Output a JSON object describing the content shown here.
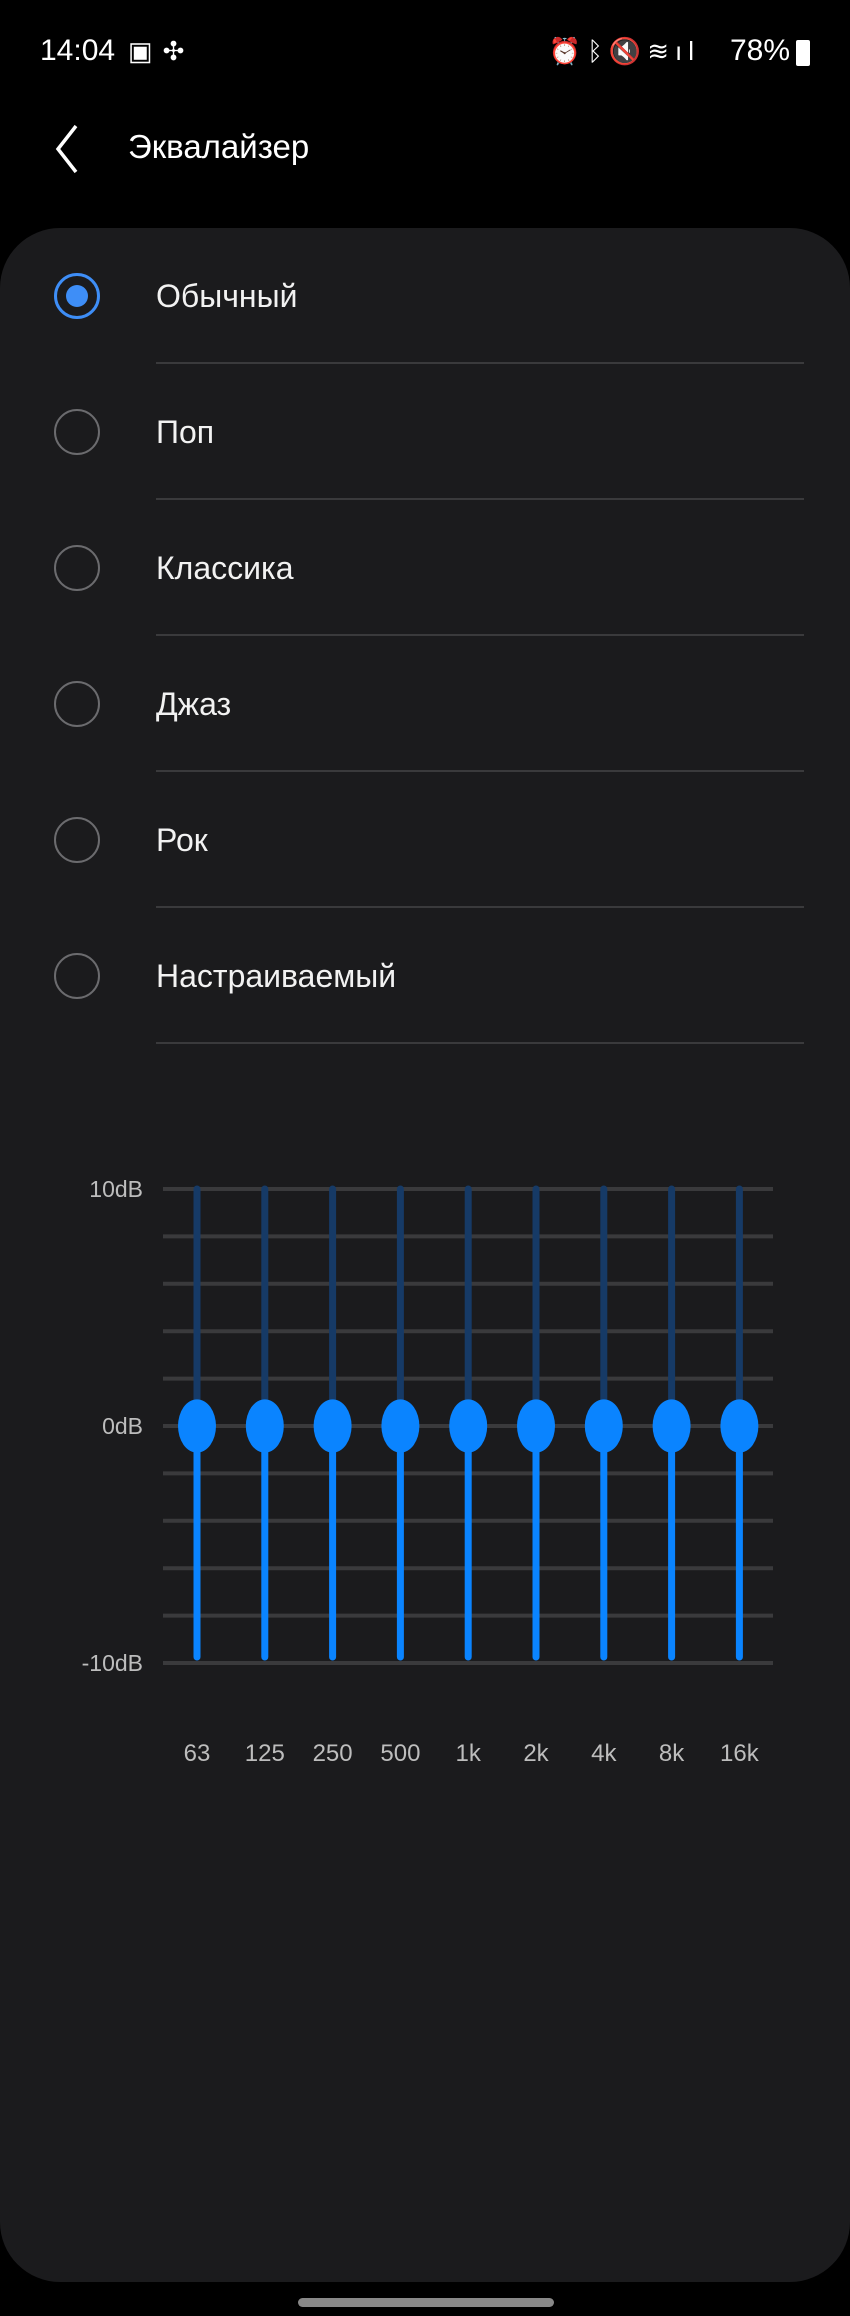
{
  "status": {
    "time": "14:04",
    "left_icons": [
      "image-icon",
      "fan-icon"
    ],
    "right_icons": [
      "alarm-icon",
      "bluetooth-icon",
      "mute-icon",
      "wifi-icon",
      "signal-icon"
    ],
    "battery": "78%"
  },
  "header": {
    "title": "Эквалайзер"
  },
  "presets": [
    {
      "label": "Обычный",
      "selected": true
    },
    {
      "label": "Поп",
      "selected": false
    },
    {
      "label": "Классика",
      "selected": false
    },
    {
      "label": "Джаз",
      "selected": false
    },
    {
      "label": "Рок",
      "selected": false
    },
    {
      "label": "Настраиваемый",
      "selected": false
    }
  ],
  "colors": {
    "accent": "#0a84ff",
    "track_dim": "#163a66"
  },
  "chart_data": {
    "type": "bar",
    "categories": [
      "63",
      "125",
      "250",
      "500",
      "1k",
      "2k",
      "4k",
      "8k",
      "16k"
    ],
    "values": [
      0,
      0,
      0,
      0,
      0,
      0,
      0,
      0,
      0
    ],
    "ylim": [
      -10,
      10
    ],
    "y_tick_labels": [
      "10dB",
      "0dB",
      "-10dB"
    ],
    "grid": true
  }
}
